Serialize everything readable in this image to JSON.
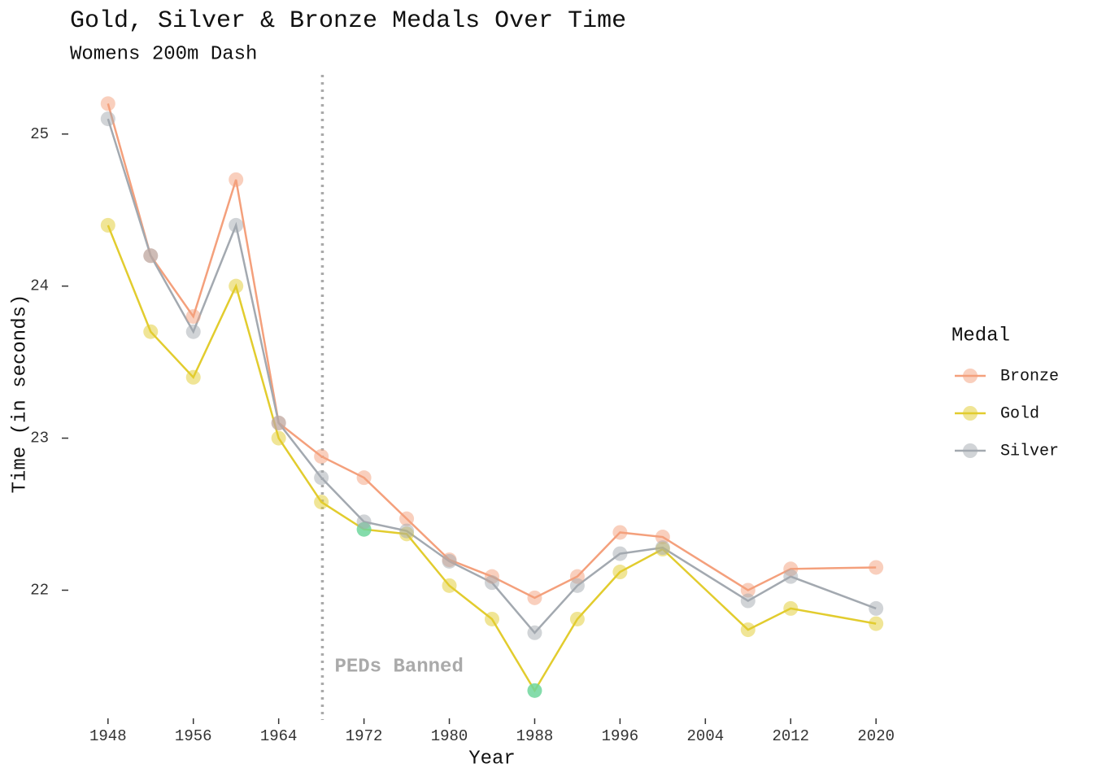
{
  "chart_data": {
    "type": "line",
    "title": "Gold, Silver & Bronze Medals Over Time",
    "subtitle": "Womens 200m Dash",
    "x_label": "Year",
    "y_label": "Time (in seconds)",
    "legend_title": "Medal",
    "x": [
      1948,
      1952,
      1956,
      1960,
      1964,
      1968,
      1972,
      1976,
      1980,
      1984,
      1988,
      1992,
      1996,
      2000,
      2008,
      2012,
      2020
    ],
    "series": [
      {
        "name": "Bronze",
        "color": "#f4a07c",
        "values": [
          25.2,
          24.2,
          23.8,
          24.7,
          23.1,
          22.88,
          22.74,
          22.47,
          22.2,
          22.09,
          21.95,
          22.09,
          22.38,
          22.35,
          22.0,
          22.14,
          22.15
        ]
      },
      {
        "name": "Gold",
        "color": "#e2cc2e",
        "values": [
          24.4,
          23.7,
          23.4,
          24.0,
          23.0,
          22.58,
          22.4,
          22.37,
          22.03,
          21.81,
          21.34,
          21.81,
          22.12,
          22.27,
          21.74,
          21.88,
          21.78
        ],
        "highlight_color": "#6fd69c",
        "highlight_points": [
          6,
          10
        ]
      },
      {
        "name": "Silver",
        "color": "#a3a9b0",
        "values": [
          25.1,
          24.2,
          23.7,
          24.4,
          23.1,
          22.74,
          22.45,
          22.39,
          22.19,
          22.05,
          21.72,
          22.03,
          22.24,
          22.28,
          21.93,
          22.09,
          21.88
        ]
      }
    ],
    "xlim": [
      1945.5,
      2022.5
    ],
    "xticks": [
      1948,
      1956,
      1964,
      1972,
      1980,
      1988,
      1996,
      2004,
      2012,
      2020
    ],
    "ylim": [
      21.2,
      25.4
    ],
    "yticks": [
      22,
      23,
      24,
      25
    ],
    "vline": 1968.1,
    "annotation": "PEDs Banned",
    "grid": false,
    "legend_position": "right"
  }
}
